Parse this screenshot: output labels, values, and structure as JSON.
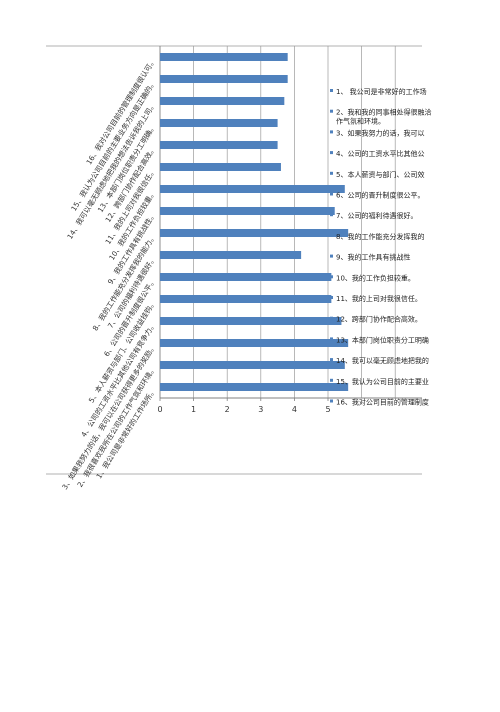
{
  "chart_data": {
    "type": "bar",
    "orientation": "horizontal",
    "grid": true,
    "legend_placement": "right",
    "bar_color": "#4F81BD",
    "xlim": [
      0,
      7
    ],
    "xticks": [
      "0",
      "1",
      "2",
      "3",
      "4",
      "5"
    ],
    "categories": [
      "1、我公司是非常好的工作场所。",
      "2、我很喜欢我所在公司的工作气氛和环境。",
      "3、如果我努力的话，我可以在公司获得更多的奖励。",
      "4、公司的工资水平比其他公司有竞争力。",
      "5、本人薪资与部门、公司收益挂钩。",
      "6、公司的晋升制度很公平。",
      "7、公司的福利待遇很好。",
      "8、我的工作能充分发挥我的能力。",
      "9、我的工作具有挑战性。",
      "10、我的工作负担较重。",
      "11、我的上司对我很信任。",
      "12、跨部门协作配合高效。",
      "13、本部门岗位职责分工明确。",
      "14、我可以毫无顾虑地把我的想法告诉我的上司。",
      "15、我认为公司目前的主要业务方向是正确的。",
      "16、我对公司目前的管理制度很认可。"
    ],
    "values": [
      5.6,
      5.5,
      5.6,
      5.4,
      5.1,
      5.1,
      4.2,
      5.6,
      5.2,
      5.5,
      3.6,
      3.5,
      3.5,
      3.7,
      3.8,
      3.8
    ],
    "legend_entries": [
      "1、  我公司是非常好的工作场",
      "2、我和我的同事相处得很融洽作气氛和环境。",
      "3、如果我努力的话，我可以",
      "4、公司的工资水平比其他公",
      "5、本人薪资与部门、公司效",
      "6、公司的晋升制度很公平。",
      "7、公司的福利待遇很好。",
      "8、我的工作能充分发挥我的",
      "9、我的工作具有挑战性",
      "10、我的工作负担较重。",
      "11、我的上司对我很信任。",
      "12、跨部门协作配合高效。",
      "13、本部门岗位职责分工明确",
      "14、我可以毫无顾虑地把我的",
      "15、我认为公司目前的主要业",
      "16、我对公司目前的管理制度"
    ]
  }
}
